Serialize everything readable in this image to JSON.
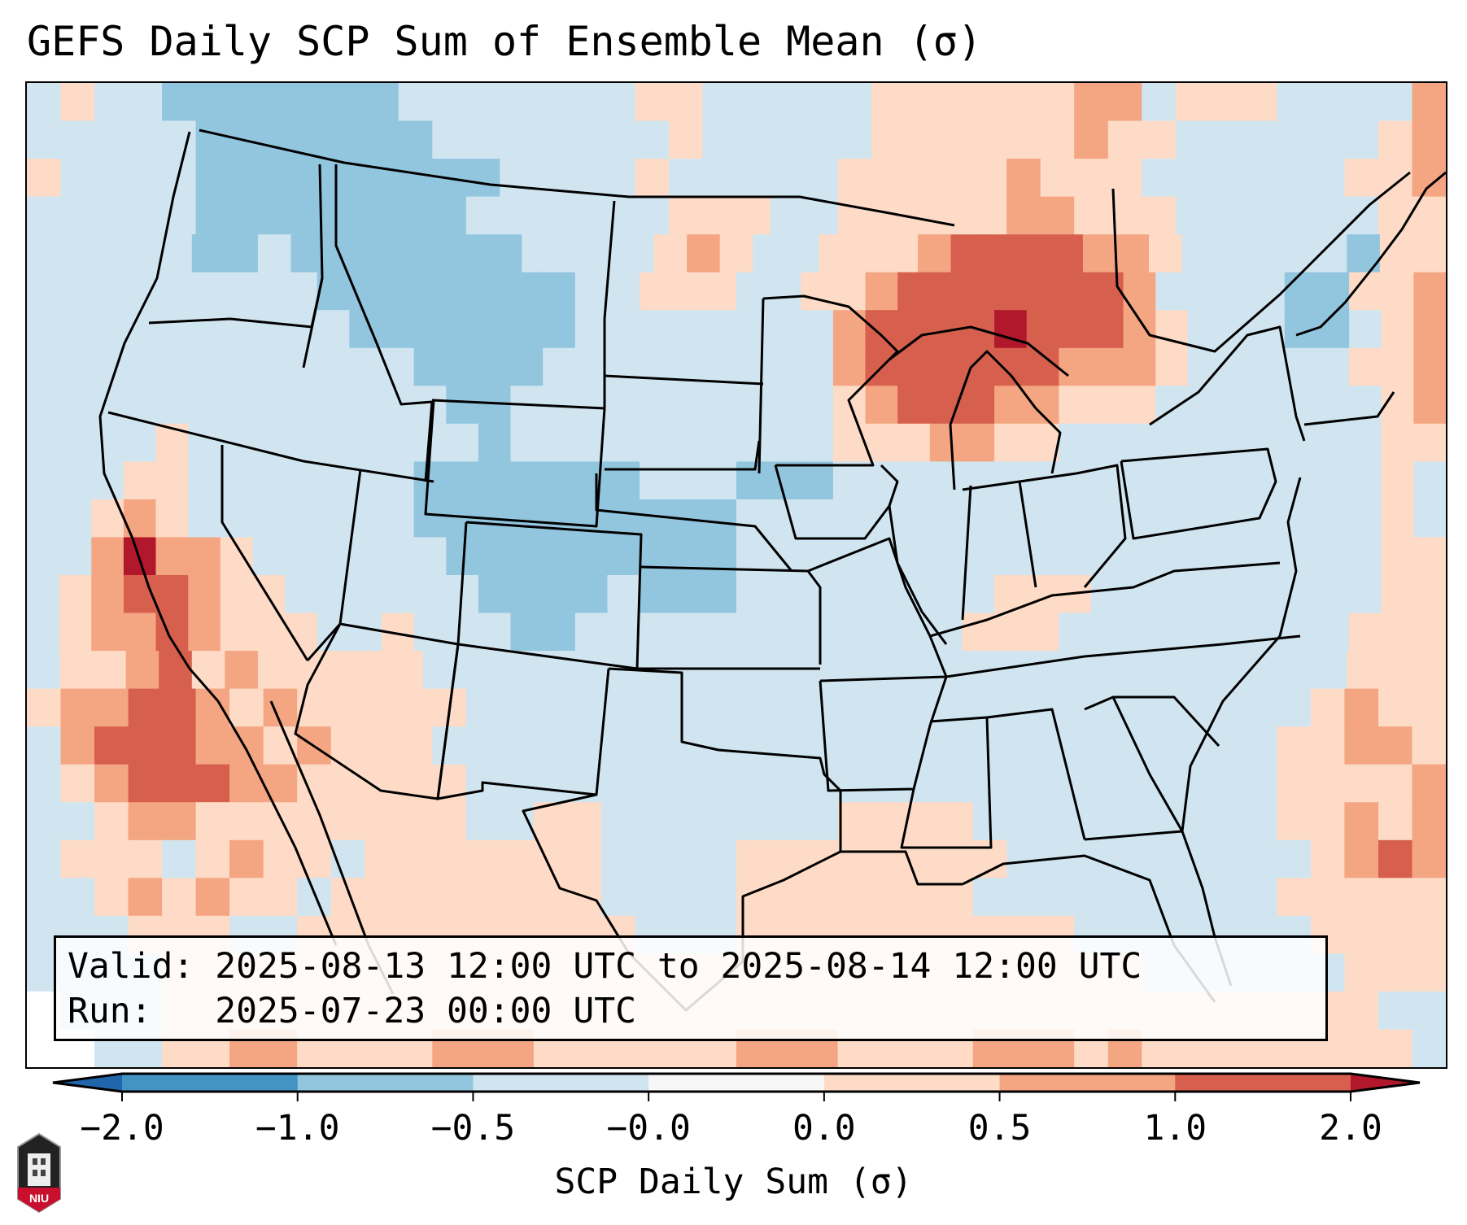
{
  "title": "GEFS Daily SCP Sum of Ensemble Mean (σ)",
  "info": {
    "valid_line": "Valid: 2025-08-13 12:00 UTC to 2025-08-14 12:00 UTC",
    "run_line": "Run:   2025-07-23 00:00 UTC"
  },
  "colorbar": {
    "label": "SCP Daily Sum (σ)",
    "ticks": [
      "−2.0",
      "−1.0",
      "−0.5",
      "−0.0",
      "0.0",
      "0.5",
      "1.0",
      "2.0"
    ],
    "bins": [
      {
        "range": "< -2.0",
        "color": "#2166ac"
      },
      {
        "range": "-2.0 to -1.0",
        "color": "#4393c3"
      },
      {
        "range": "-1.0 to -0.5",
        "color": "#92c5de"
      },
      {
        "range": "-0.5 to -0.0",
        "color": "#d1e5f0"
      },
      {
        "range": "-0.0 to 0.0",
        "color": "#f7f7f7"
      },
      {
        "range": "0.0 to 0.5",
        "color": "#fddbc7"
      },
      {
        "range": "0.5 to 1.0",
        "color": "#f4a582"
      },
      {
        "range": "1.0 to 2.0",
        "color": "#d6604d"
      },
      {
        "range": "> 2.0",
        "color": "#b2182b"
      }
    ],
    "extend": "both"
  },
  "logo": {
    "text": "NIU",
    "name": "niu-logo"
  },
  "chart_data": {
    "type": "heatmap",
    "title": "GEFS Daily SCP Sum of Ensemble Mean (σ)",
    "colorbar_label": "SCP Daily Sum (σ)",
    "levels": [
      -2.0,
      -1.0,
      -0.5,
      -0.0,
      0.0,
      0.5,
      1.0,
      2.0
    ],
    "legend_key": {
      "a": "-1.0 to -0.5",
      "b": "-0.5 to -0.0",
      "c": "0.0 to 0.5",
      "d": "0.5 to 1.0",
      "e": "1.0 to 2.0",
      "f": "> 2.0",
      "w": "-0.0 to 0.0"
    },
    "grid_rows": [
      "bcbbaaaaaaabbbbbbbccbbbbbccccccddbcccbbbbd",
      "bbbbbaaaaaaabbbbbbbcbbbbbccccccdccbbbbbbcd",
      "cbbbbaaaaaaaaabbbbcbbbbbcccccdcccbbbbbbccd",
      "bbbbbaaaaaaaabbbbbbcccbbcccccddcccbbbbbbcc",
      "bbbbbaabaaaaaaabbbbcdcbbcccdeeeeddcbbbbbacc",
      "bbbbbbbbbaaaaaaaabbcccbbccdeeeeeeedbbbbaaccd",
      "bbbbbbbbbbaaaaaaabbbbbbbbdeeeefeeedcbbbaabcd",
      "bbbbbbbbbbbbaaaabbbbbbbbbdeeeeeedddcbbbbbccd",
      "bbbbbbbbbbbbbaabbbbbbbbbbcdeeeddcccbbbbbbbcd",
      "bbbbcbbbbbbbbbabbbbbbbbbbcccddccbbbbbbbbbbcc",
      "bbbccbbbbbbbaaaaaaabbbaaabbbbbbbbbbbbbbbbbcb",
      "bbcdcbbbbbbbaaaaaaaaaabbbbbbbbbbbbbbbbbbbbcb",
      "bbdfddcbbbbbbaaaaaaaaabbbbbbbbbbbbbbbbbbbbcc",
      "bcdeedccbbbbbbaaaabaaabbbbbbbbcccbbbbbbbbbcc",
      "bcddedcccbbcbbbaabbbbbbbbbbbbcccbbbbbbbbbccc",
      "bccdecdcccccbbbbbbbbbbbbbbbbbbbbbbbbbbbbccc",
      "cddeedcdcccccbbbbbbbbbbbbbbbbbbbbbbbbbcdcc",
      "bdeeeddcdcccbbbbbbbbbbbbbbbbbbbbbbbbbccddc",
      "bcdeeeddcccccbbbbbbbbbbbbbbbbbbbbbbbbccccd",
      "bbcddccccccccbbccbbbbbbbccccbbbbbbbbbccdcd",
      "bcccbcdccbcccccccbbbbccccccccbbbbbbbbbcded",
      "bbcdcdccbccccccccbbbbcccccccbbbbbbbbbccccc",
      "bbbcccbbccccccccccbbbccccccccccbbbbbbbcccc",
      "bbbbcccccccccccccccccccccccccccccbbbbbbccc",
      "wbbbccccccccccccccccccccccccccccccccccccbb",
      "wwbbccddccccdddccccccdddccccdddcdccccccccb"
    ]
  }
}
